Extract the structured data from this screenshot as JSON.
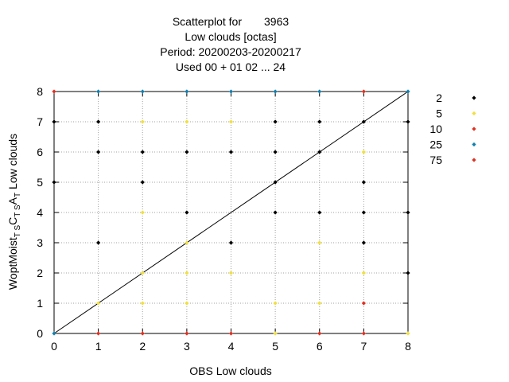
{
  "chart_data": {
    "type": "scatter",
    "title": {
      "line1_prefix": "Scatterplot for",
      "line1_value": "3963",
      "line2": "Low clouds [octas]",
      "line3": "Period: 20200203-20200217",
      "line4": "Used  00 + 01 02 ... 24"
    },
    "xlabel": "OBS Low clouds",
    "ylabel": {
      "base": "WoptMoist",
      "sub1": "T S",
      "mid": "C",
      "sub2": "T S",
      "mid2": "A",
      "sub3": "T",
      "tail": "  Low clouds"
    },
    "xlim": [
      0,
      8
    ],
    "ylim": [
      0,
      8
    ],
    "x_ticks": [
      "0",
      "1",
      "2",
      "3",
      "4",
      "5",
      "6",
      "7",
      "8"
    ],
    "y_ticks": [
      "0",
      "1",
      "2",
      "3",
      "4",
      "5",
      "6",
      "7",
      "8"
    ],
    "grid": true,
    "diagonal": true,
    "legend_position": "right",
    "series": [
      {
        "name": "2",
        "color": "#000000",
        "points": [
          [
            0,
            7
          ],
          [
            0,
            5
          ],
          [
            1,
            7
          ],
          [
            1,
            6
          ],
          [
            1,
            3
          ],
          [
            2,
            6
          ],
          [
            2,
            5
          ],
          [
            3,
            6
          ],
          [
            3,
            4
          ],
          [
            4,
            6
          ],
          [
            4,
            3
          ],
          [
            5,
            7
          ],
          [
            5,
            6
          ],
          [
            5,
            5
          ],
          [
            5,
            4
          ],
          [
            6,
            7
          ],
          [
            6,
            6
          ],
          [
            6,
            4
          ],
          [
            7,
            7
          ],
          [
            7,
            5
          ],
          [
            7,
            4
          ],
          [
            7,
            3
          ],
          [
            8,
            7
          ],
          [
            8,
            4
          ],
          [
            8,
            2
          ]
        ]
      },
      {
        "name": "5",
        "color": "#f0e040",
        "points": [
          [
            1,
            1
          ],
          [
            2,
            7
          ],
          [
            2,
            4
          ],
          [
            2,
            2
          ],
          [
            2,
            1
          ],
          [
            3,
            7
          ],
          [
            3,
            3
          ],
          [
            3,
            2
          ],
          [
            3,
            1
          ],
          [
            4,
            7
          ],
          [
            4,
            2
          ],
          [
            5,
            1
          ],
          [
            5,
            0
          ],
          [
            6,
            3
          ],
          [
            6,
            1
          ],
          [
            7,
            6
          ],
          [
            7,
            2
          ],
          [
            8,
            0
          ]
        ]
      },
      {
        "name": "10",
        "color": "#e03020",
        "points": [
          [
            0,
            8
          ],
          [
            1,
            0
          ],
          [
            2,
            0
          ],
          [
            3,
            0
          ],
          [
            4,
            0
          ],
          [
            6,
            0
          ],
          [
            7,
            1
          ],
          [
            7,
            0
          ]
        ]
      },
      {
        "name": "25",
        "color": "#1080b0",
        "points": [
          [
            0,
            0
          ],
          [
            1,
            8
          ],
          [
            2,
            8
          ],
          [
            3,
            8
          ],
          [
            4,
            8
          ],
          [
            5,
            8
          ],
          [
            6,
            8
          ],
          [
            8,
            8
          ]
        ]
      },
      {
        "name": "75",
        "color": "#e03020",
        "points": [
          [
            7,
            8
          ]
        ]
      }
    ]
  }
}
